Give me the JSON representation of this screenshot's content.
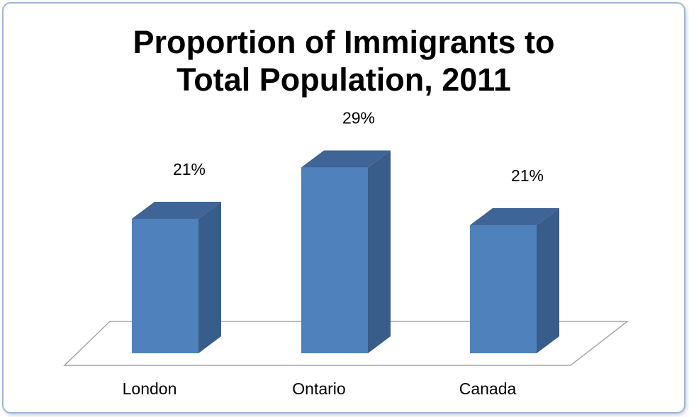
{
  "chart_data": {
    "type": "bar",
    "title_lines": [
      "Proportion of Immigrants to",
      "Total Population, 2011"
    ],
    "categories": [
      "London",
      "Ontario",
      "Canada"
    ],
    "values": [
      21,
      29,
      21
    ],
    "data_labels": [
      "21%",
      "29%",
      "21%"
    ],
    "unit": "%",
    "ylim": [
      0,
      40
    ],
    "grid": false,
    "legend": "none",
    "bar_style": "3d-column"
  },
  "colors": {
    "bar_front": "#4f81bd",
    "bar_side": "#385d8a",
    "bar_top": "#3f6496",
    "floor_stroke": "#a6a6a6",
    "frame_border": "#9fb6d6"
  }
}
